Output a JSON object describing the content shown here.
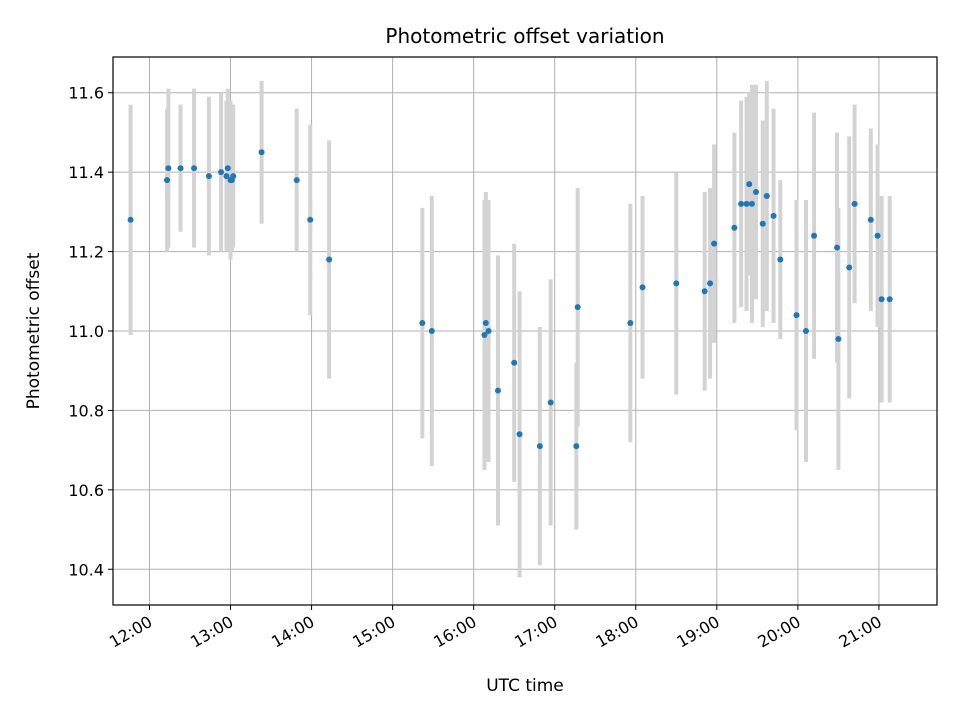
{
  "chart_data": {
    "type": "scatter",
    "title": "Photometric offset variation",
    "xlabel": "UTC time",
    "ylabel": "Photometric offset",
    "x_ticks": [
      "12:00",
      "13:00",
      "14:00",
      "15:00",
      "16:00",
      "17:00",
      "18:00",
      "19:00",
      "20:00",
      "21:00"
    ],
    "y_ticks": [
      "10.4",
      "10.6",
      "10.8",
      "11.0",
      "11.2",
      "11.4",
      "11.6"
    ],
    "xlim": [
      "11:33",
      "21:43"
    ],
    "ylim": [
      10.31,
      11.69
    ],
    "grid": true,
    "colors": {
      "point": "#1f77b4",
      "errorbar": "#d3d3d3",
      "grid": "#b0b0b0"
    },
    "series": [
      {
        "x": [
          "11:46",
          "12:13",
          "12:14",
          "12:23",
          "12:33",
          "12:44",
          "12:53",
          "12:57",
          "12:58",
          "13:00",
          "13:01",
          "13:02",
          "13:23",
          "13:49",
          "13:59",
          "14:13",
          "15:22",
          "15:29",
          "16:08",
          "16:09",
          "16:11",
          "16:18",
          "16:30",
          "16:34",
          "16:49",
          "16:57",
          "17:16",
          "17:17",
          "17:56",
          "18:05",
          "18:30",
          "18:51",
          "18:55",
          "18:58",
          "19:13",
          "19:18",
          "19:22",
          "19:24",
          "19:26",
          "19:29",
          "19:34",
          "19:37",
          "19:42",
          "19:47",
          "19:59",
          "20:06",
          "20:12",
          "20:29",
          "20:30",
          "20:38",
          "20:42",
          "20:54",
          "20:59",
          "21:02",
          "21:08"
        ],
        "y": [
          11.28,
          11.38,
          11.41,
          11.41,
          11.41,
          11.39,
          11.4,
          11.39,
          11.41,
          11.38,
          11.38,
          11.39,
          11.45,
          11.38,
          11.28,
          11.18,
          11.02,
          11.0,
          10.99,
          11.02,
          11.0,
          10.85,
          10.92,
          10.74,
          10.71,
          10.82,
          10.71,
          11.06,
          11.02,
          11.11,
          11.12,
          11.1,
          11.12,
          11.22,
          11.26,
          11.32,
          11.32,
          11.37,
          11.32,
          11.35,
          11.27,
          11.34,
          11.29,
          11.18,
          11.04,
          11.0,
          11.24,
          11.21,
          10.98,
          11.16,
          11.32,
          11.28,
          11.24,
          11.08,
          11.08
        ],
        "yerr": [
          0.29,
          0.18,
          0.2,
          0.16,
          0.2,
          0.2,
          0.2,
          0.19,
          0.2,
          0.2,
          0.18,
          0.18,
          0.18,
          0.18,
          0.24,
          0.3,
          0.29,
          0.34,
          0.34,
          0.33,
          0.33,
          0.34,
          0.3,
          0.36,
          0.3,
          0.31,
          0.21,
          0.3,
          0.3,
          0.23,
          0.28,
          0.25,
          0.24,
          0.25,
          0.24,
          0.26,
          0.27,
          0.23,
          0.3,
          0.27,
          0.26,
          0.29,
          0.27,
          0.2,
          0.29,
          0.33,
          0.31,
          0.29,
          0.33,
          0.33,
          0.25,
          0.23,
          0.23,
          0.26,
          0.26
        ]
      }
    ]
  }
}
